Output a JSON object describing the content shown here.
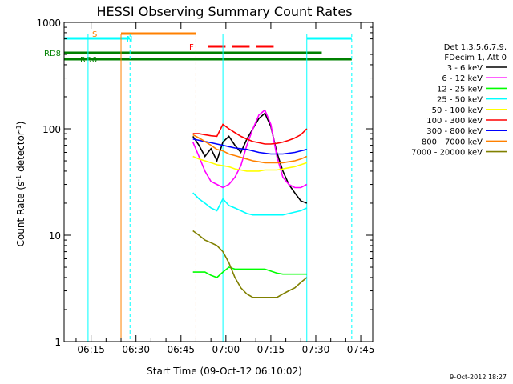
{
  "chart_data": {
    "type": "line",
    "title": "HESSI Observing Summary Count Rates",
    "xlabel": "Start Time (09-Oct-12 06:10:02)",
    "ylabel_main": "Count Rate (s",
    "ylabel_sup1": "-1",
    "ylabel_mid": " detector",
    "ylabel_sup2": "-1",
    "ylabel_end": ")",
    "ylog": true,
    "ylim": [
      1,
      1000
    ],
    "xlim_minutes": [
      6.0,
      92.0
    ],
    "x_ticks": [
      {
        "label": "06:15",
        "m": 15
      },
      {
        "label": "06:30",
        "m": 30
      },
      {
        "label": "06:45",
        "m": 45
      },
      {
        "label": "07:00",
        "m": 60
      },
      {
        "label": "07:15",
        "m": 75
      },
      {
        "label": "07:30",
        "m": 90
      },
      {
        "label": "07:45",
        "m": 105
      }
    ],
    "y_ticks": [
      {
        "label": "1",
        "v": 1
      },
      {
        "label": "10",
        "v": 10
      },
      {
        "label": "100",
        "v": 100
      },
      {
        "label": "1000",
        "v": 1000
      }
    ],
    "legend_header": [
      "Det 1,3,5,6,7,9,",
      "FDecim 1, Att 0"
    ],
    "series": [
      {
        "name": "3 - 6 keV",
        "color": "#000000",
        "x": [
          49,
          51,
          53,
          55,
          57,
          59,
          61,
          63,
          65,
          67,
          69,
          71,
          73,
          75,
          77,
          79,
          81,
          83,
          85,
          87
        ],
        "y": [
          85,
          70,
          55,
          65,
          50,
          75,
          85,
          70,
          60,
          80,
          100,
          125,
          140,
          105,
          60,
          40,
          30,
          25,
          21,
          20
        ]
      },
      {
        "name": "6 - 12 keV",
        "color": "#ff00ff",
        "x": [
          49,
          51,
          53,
          55,
          57,
          59,
          61,
          63,
          65,
          67,
          69,
          71,
          73,
          75,
          77,
          79,
          81,
          83,
          85,
          87
        ],
        "y": [
          75,
          55,
          40,
          32,
          30,
          28,
          30,
          35,
          45,
          70,
          100,
          135,
          150,
          110,
          55,
          35,
          30,
          28,
          28,
          30
        ]
      },
      {
        "name": "12 - 25 keV",
        "color": "#00ff00",
        "x": [
          49,
          51,
          53,
          55,
          57,
          59,
          61,
          63,
          65,
          67,
          69,
          71,
          73,
          75,
          77,
          79,
          81,
          83,
          85,
          87
        ],
        "y": [
          4.5,
          4.5,
          4.5,
          4.2,
          4.0,
          4.5,
          5,
          4.8,
          4.8,
          4.8,
          4.8,
          4.8,
          4.8,
          4.6,
          4.4,
          4.3,
          4.3,
          4.3,
          4.3,
          4.3
        ]
      },
      {
        "name": "25 - 50 keV",
        "color": "#00ffff",
        "x": [
          49,
          51,
          53,
          55,
          57,
          59,
          61,
          63,
          65,
          67,
          69,
          71,
          73,
          75,
          77,
          79,
          81,
          83,
          85,
          87
        ],
        "y": [
          25,
          22,
          20,
          18,
          17,
          22,
          19,
          18,
          17,
          16,
          15.5,
          15.5,
          15.5,
          15.5,
          15.5,
          15.5,
          16,
          16.5,
          17,
          18
        ]
      },
      {
        "name": "50 - 100 keV",
        "color": "#ffff00",
        "x": [
          49,
          51,
          53,
          55,
          57,
          59,
          61,
          63,
          65,
          67,
          69,
          71,
          73,
          75,
          77,
          79,
          81,
          83,
          85,
          87
        ],
        "y": [
          55,
          52,
          50,
          48,
          46,
          45,
          44,
          42,
          41,
          40,
          40,
          40,
          41,
          41,
          41,
          42,
          43,
          44,
          46,
          48
        ]
      },
      {
        "name": "100 - 300 keV",
        "color": "#ff0000",
        "x": [
          49,
          51,
          53,
          55,
          57,
          59,
          61,
          63,
          65,
          67,
          69,
          71,
          73,
          75,
          77,
          79,
          81,
          83,
          85,
          87
        ],
        "y": [
          90,
          90,
          88,
          86,
          85,
          110,
          100,
          92,
          85,
          80,
          76,
          74,
          72,
          72,
          73,
          75,
          78,
          82,
          88,
          100
        ]
      },
      {
        "name": "300 - 800 keV",
        "color": "#0000ff",
        "x": [
          49,
          51,
          53,
          55,
          57,
          59,
          61,
          63,
          65,
          67,
          69,
          71,
          73,
          75,
          77,
          79,
          81,
          83,
          85,
          87
        ],
        "y": [
          80,
          78,
          76,
          74,
          72,
          70,
          68,
          66,
          65,
          64,
          62,
          60,
          59,
          58,
          58,
          58,
          59,
          60,
          62,
          64
        ]
      },
      {
        "name": "800 - 7000 keV",
        "color": "#ff8000",
        "x": [
          49,
          51,
          53,
          55,
          57,
          59,
          61,
          63,
          65,
          67,
          69,
          71,
          73,
          75,
          77,
          79,
          81,
          83,
          85,
          87
        ],
        "y": [
          88,
          82,
          76,
          70,
          64,
          62,
          58,
          56,
          54,
          52,
          50,
          49,
          48,
          48,
          48,
          48,
          49,
          50,
          52,
          55
        ]
      },
      {
        "name": "7000 - 20000 keV",
        "color": "#808000",
        "x": [
          49,
          51,
          53,
          55,
          57,
          59,
          61,
          63,
          65,
          67,
          69,
          71,
          73,
          75,
          77,
          79,
          81,
          83,
          85,
          87
        ],
        "y": [
          11,
          10,
          9,
          8.5,
          8,
          7,
          5.5,
          4,
          3.2,
          2.8,
          2.6,
          2.6,
          2.6,
          2.6,
          2.6,
          2.8,
          3.0,
          3.2,
          3.6,
          4.0
        ]
      }
    ],
    "flags": [
      {
        "label": "S",
        "color": "#ff8000",
        "m0": 25,
        "m1": 50
      },
      {
        "label": "N",
        "color": "#00ffff",
        "m0": 6,
        "m1": 28
      },
      {
        "label": "N",
        "color": "#00ffff",
        "m0": 87,
        "m1": 102
      },
      {
        "label": "F",
        "color": "#ff0000",
        "m0": 54,
        "m1": 77
      },
      {
        "label": "RD8",
        "color": "#008000",
        "m0": 6,
        "m1": 92
      },
      {
        "label": "RD6",
        "color": "#008000",
        "m0": 6,
        "m1": 102
      }
    ],
    "grid": false,
    "legend_placement": "right",
    "background": "#ffffff",
    "axis_color": "#000000",
    "title_color": "#000000"
  },
  "footer_timestamp": "9-Oct-2012 18:27"
}
